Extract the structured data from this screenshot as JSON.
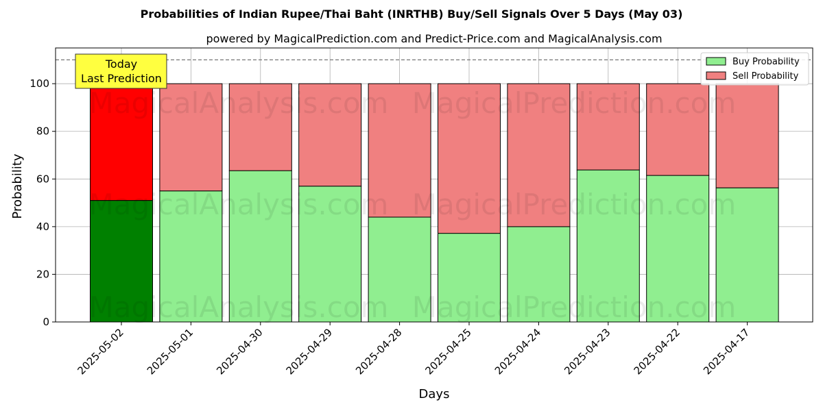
{
  "chart_data": {
    "type": "bar",
    "stacked": true,
    "title": "Probabilities of Indian Rupee/Thai Baht (INRTHB) Buy/Sell Signals Over 5 Days (May 03)",
    "subtitle": "powered by MagicalPrediction.com and Predict-Price.com and MagicalAnalysis.com",
    "xlabel": "Days",
    "ylabel": "Probability",
    "ylim": [
      0,
      115
    ],
    "yticks": [
      0,
      20,
      40,
      60,
      80,
      100
    ],
    "grid": true,
    "legend_position": "top-right",
    "reference_line": 110,
    "categories": [
      "2025-05-02",
      "2025-05-01",
      "2025-04-30",
      "2025-04-29",
      "2025-04-28",
      "2025-04-25",
      "2025-04-24",
      "2025-04-23",
      "2025-04-22",
      "2025-04-17"
    ],
    "series": [
      {
        "name": "Buy Probability",
        "color": "#90ee90",
        "highlight_color": "#008000",
        "values": [
          51,
          55,
          63.5,
          57,
          44,
          37.2,
          40,
          63.8,
          61.5,
          56.3
        ]
      },
      {
        "name": "Sell Probability",
        "color": "#f08080",
        "highlight_color": "#ff0000",
        "values": [
          49,
          45,
          36.5,
          43,
          56,
          62.8,
          60,
          36.2,
          38.5,
          43.7
        ]
      }
    ],
    "annotation": {
      "lines": [
        "Today",
        "Last Prediction"
      ],
      "bg_color": "#ffff40"
    },
    "watermarks": [
      "MagicalAnalysis.com",
      "MagicalPrediction.com"
    ]
  }
}
